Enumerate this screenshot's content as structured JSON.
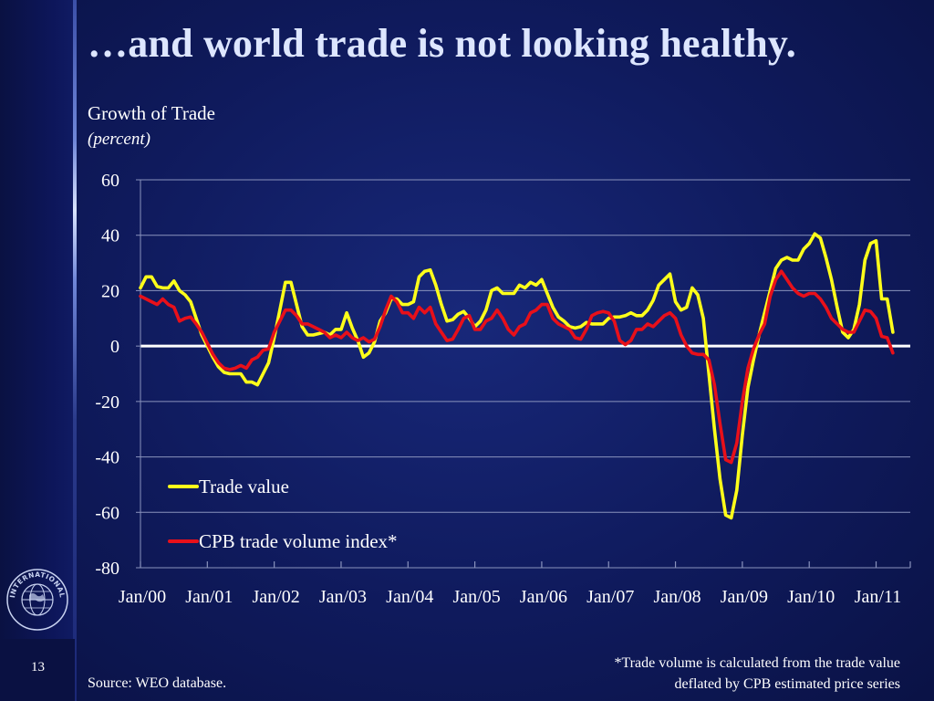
{
  "slide": {
    "title": "…and world trade is not looking healthy.",
    "number": "13",
    "source": "Source:  WEO database.",
    "footnote_line1": "*Trade volume is calculated from the trade value",
    "footnote_line2": "deflated by CPB estimated price series",
    "logo_text": "INTERNATIONAL MONETARY FUND",
    "colors": {
      "background": "#0f1a5c",
      "title": "#dde6ff",
      "trade_value": "#ffff1a",
      "cpb_volume": "#e8101a",
      "zero_line": "#ffffff",
      "gridline": "#8a93bd"
    }
  },
  "chart_data": {
    "type": "line",
    "title": "Growth of Trade",
    "subtitle": "(percent)",
    "ylim": [
      -80,
      60
    ],
    "yticks": [
      60,
      40,
      20,
      0,
      -20,
      -40,
      -60,
      -80
    ],
    "ytick_labels": [
      "60",
      "40",
      "20",
      "0",
      "-20",
      "-40",
      "-60",
      "-80"
    ],
    "x_range": [
      0,
      138
    ],
    "x_unit": "months since Jan/00",
    "xticks": [
      0,
      12,
      24,
      36,
      48,
      60,
      72,
      84,
      96,
      108,
      120,
      132
    ],
    "xtick_labels": [
      "Jan/00",
      "Jan/01",
      "Jan/02",
      "Jan/03",
      "Jan/04",
      "Jan/05",
      "Jan/06",
      "Jan/07",
      "Jan/08",
      "Jan/09",
      "Jan/10",
      "Jan/11"
    ],
    "legend_position": "lower-left",
    "series": [
      {
        "name": "Trade value",
        "color": "#ffff1a",
        "points": [
          [
            0,
            21
          ],
          [
            1,
            25
          ],
          [
            2,
            25
          ],
          [
            3,
            21.5
          ],
          [
            4,
            21
          ],
          [
            5,
            21
          ],
          [
            6,
            23.5
          ],
          [
            7,
            20
          ],
          [
            8,
            18.5
          ],
          [
            9,
            16
          ],
          [
            10,
            10
          ],
          [
            11,
            4
          ],
          [
            12,
            0
          ],
          [
            13,
            -4
          ],
          [
            14,
            -7.5
          ],
          [
            15,
            -9.5
          ],
          [
            16,
            -10
          ],
          [
            17,
            -10
          ],
          [
            18,
            -10
          ],
          [
            19,
            -13
          ],
          [
            20,
            -13
          ],
          [
            21,
            -14
          ],
          [
            22,
            -10
          ],
          [
            23,
            -6
          ],
          [
            24,
            3
          ],
          [
            25,
            13
          ],
          [
            26,
            23
          ],
          [
            27,
            23
          ],
          [
            28,
            15
          ],
          [
            29,
            7
          ],
          [
            30,
            4
          ],
          [
            31,
            4
          ],
          [
            32,
            4.5
          ],
          [
            33,
            5
          ],
          [
            34,
            4
          ],
          [
            35,
            6
          ],
          [
            36,
            6
          ],
          [
            37,
            12
          ],
          [
            38,
            6.5
          ],
          [
            39,
            2
          ],
          [
            40,
            -4
          ],
          [
            41,
            -2.5
          ],
          [
            42,
            1.5
          ],
          [
            43,
            9
          ],
          [
            44,
            12
          ],
          [
            45,
            17
          ],
          [
            46,
            17
          ],
          [
            47,
            15
          ],
          [
            48,
            15
          ],
          [
            49,
            16
          ],
          [
            50,
            25
          ],
          [
            51,
            27
          ],
          [
            52,
            27.5
          ],
          [
            53,
            22
          ],
          [
            54,
            15
          ],
          [
            55,
            9
          ],
          [
            56,
            9.5
          ],
          [
            57,
            11.5
          ],
          [
            58,
            12.5
          ],
          [
            59,
            10
          ],
          [
            60,
            7
          ],
          [
            61,
            9
          ],
          [
            62,
            13
          ],
          [
            63,
            20
          ],
          [
            64,
            21
          ],
          [
            65,
            19
          ],
          [
            66,
            19
          ],
          [
            67,
            19
          ],
          [
            68,
            22
          ],
          [
            69,
            21
          ],
          [
            70,
            23
          ],
          [
            71,
            22
          ],
          [
            72,
            24
          ],
          [
            73,
            19
          ],
          [
            74,
            14
          ],
          [
            75,
            10.5
          ],
          [
            76,
            9
          ],
          [
            77,
            7
          ],
          [
            78,
            6.5
          ],
          [
            79,
            7
          ],
          [
            80,
            8.5
          ],
          [
            81,
            8
          ],
          [
            82,
            8
          ],
          [
            83,
            8
          ],
          [
            84,
            10
          ],
          [
            85,
            10.5
          ],
          [
            86,
            10.5
          ],
          [
            87,
            11
          ],
          [
            88,
            12
          ],
          [
            89,
            11
          ],
          [
            90,
            11
          ],
          [
            91,
            13
          ],
          [
            92,
            16.5
          ],
          [
            93,
            22
          ],
          [
            94,
            24
          ],
          [
            95,
            26
          ],
          [
            96,
            16
          ],
          [
            97,
            13
          ],
          [
            98,
            14
          ],
          [
            99,
            21
          ],
          [
            100,
            18.5
          ],
          [
            101,
            10
          ],
          [
            102,
            -10
          ],
          [
            103,
            -30
          ],
          [
            104,
            -48
          ],
          [
            105,
            -61
          ],
          [
            106,
            -62
          ],
          [
            107,
            -52
          ],
          [
            108,
            -32
          ],
          [
            109,
            -15
          ],
          [
            110,
            -5
          ],
          [
            111,
            4
          ],
          [
            112,
            12
          ],
          [
            113,
            20
          ],
          [
            114,
            28
          ],
          [
            115,
            31
          ],
          [
            116,
            32
          ],
          [
            117,
            31
          ],
          [
            118,
            31
          ],
          [
            119,
            35
          ],
          [
            120,
            37
          ],
          [
            121,
            40.5
          ],
          [
            122,
            39
          ],
          [
            123,
            32
          ],
          [
            124,
            24
          ],
          [
            125,
            14
          ],
          [
            126,
            5
          ],
          [
            127,
            3
          ],
          [
            128,
            6
          ],
          [
            129,
            15
          ],
          [
            130,
            31
          ],
          [
            131,
            37
          ],
          [
            132,
            38
          ],
          [
            133,
            17
          ],
          [
            134,
            17
          ],
          [
            135,
            5
          ]
        ]
      },
      {
        "name": "CPB trade volume index*",
        "color": "#e8101a",
        "points": [
          [
            0,
            18
          ],
          [
            1,
            17
          ],
          [
            2,
            16
          ],
          [
            3,
            15
          ],
          [
            4,
            17
          ],
          [
            5,
            15
          ],
          [
            6,
            14
          ],
          [
            7,
            9
          ],
          [
            8,
            10
          ],
          [
            9,
            10.5
          ],
          [
            10,
            8
          ],
          [
            11,
            5
          ],
          [
            12,
            1
          ],
          [
            13,
            -3
          ],
          [
            14,
            -6
          ],
          [
            15,
            -8
          ],
          [
            16,
            -8.5
          ],
          [
            17,
            -8
          ],
          [
            18,
            -7
          ],
          [
            19,
            -8
          ],
          [
            20,
            -5
          ],
          [
            21,
            -4
          ],
          [
            22,
            -1.5
          ],
          [
            23,
            -1
          ],
          [
            24,
            5
          ],
          [
            25,
            9
          ],
          [
            26,
            13
          ],
          [
            27,
            13
          ],
          [
            28,
            11
          ],
          [
            29,
            8
          ],
          [
            30,
            8
          ],
          [
            31,
            7
          ],
          [
            32,
            6
          ],
          [
            33,
            5
          ],
          [
            34,
            3
          ],
          [
            35,
            4
          ],
          [
            36,
            3
          ],
          [
            37,
            5
          ],
          [
            38,
            3
          ],
          [
            39,
            2
          ],
          [
            40,
            3
          ],
          [
            41,
            1.5
          ],
          [
            42,
            2.5
          ],
          [
            43,
            7
          ],
          [
            44,
            13
          ],
          [
            45,
            18
          ],
          [
            46,
            16
          ],
          [
            47,
            12
          ],
          [
            48,
            12
          ],
          [
            49,
            10
          ],
          [
            50,
            14
          ],
          [
            51,
            12
          ],
          [
            52,
            14
          ],
          [
            53,
            8
          ],
          [
            54,
            5
          ],
          [
            55,
            2
          ],
          [
            56,
            2.5
          ],
          [
            57,
            6
          ],
          [
            58,
            10
          ],
          [
            59,
            11
          ],
          [
            60,
            6
          ],
          [
            61,
            6
          ],
          [
            62,
            9
          ],
          [
            63,
            10
          ],
          [
            64,
            13
          ],
          [
            65,
            10
          ],
          [
            66,
            6
          ],
          [
            67,
            4
          ],
          [
            68,
            7
          ],
          [
            69,
            8
          ],
          [
            70,
            12
          ],
          [
            71,
            13
          ],
          [
            72,
            15
          ],
          [
            73,
            15
          ],
          [
            74,
            10
          ],
          [
            75,
            8
          ],
          [
            76,
            7
          ],
          [
            77,
            6
          ],
          [
            78,
            3
          ],
          [
            79,
            2.5
          ],
          [
            80,
            6
          ],
          [
            81,
            11
          ],
          [
            82,
            12
          ],
          [
            83,
            12.5
          ],
          [
            84,
            12
          ],
          [
            85,
            9
          ],
          [
            86,
            2
          ],
          [
            87,
            0.5
          ],
          [
            88,
            2
          ],
          [
            89,
            6
          ],
          [
            90,
            6
          ],
          [
            91,
            8
          ],
          [
            92,
            7
          ],
          [
            93,
            9
          ],
          [
            94,
            11
          ],
          [
            95,
            12
          ],
          [
            96,
            10
          ],
          [
            97,
            4
          ],
          [
            98,
            0
          ],
          [
            99,
            -2.5
          ],
          [
            100,
            -3
          ],
          [
            101,
            -3
          ],
          [
            102,
            -5
          ],
          [
            103,
            -14
          ],
          [
            104,
            -28
          ],
          [
            105,
            -41
          ],
          [
            106,
            -42
          ],
          [
            107,
            -35
          ],
          [
            108,
            -20
          ],
          [
            109,
            -8
          ],
          [
            110,
            -1
          ],
          [
            111,
            4
          ],
          [
            112,
            8
          ],
          [
            113,
            18
          ],
          [
            114,
            24
          ],
          [
            115,
            27
          ],
          [
            116,
            24
          ],
          [
            117,
            21
          ],
          [
            118,
            19
          ],
          [
            119,
            18
          ],
          [
            120,
            19
          ],
          [
            121,
            19
          ],
          [
            122,
            17
          ],
          [
            123,
            14
          ],
          [
            124,
            10
          ],
          [
            125,
            8
          ],
          [
            126,
            6
          ],
          [
            127,
            5
          ],
          [
            128,
            5
          ],
          [
            129,
            9
          ],
          [
            130,
            13
          ],
          [
            131,
            12.5
          ],
          [
            132,
            10
          ],
          [
            133,
            3.5
          ],
          [
            134,
            3
          ],
          [
            135,
            -2.5
          ]
        ]
      }
    ]
  }
}
